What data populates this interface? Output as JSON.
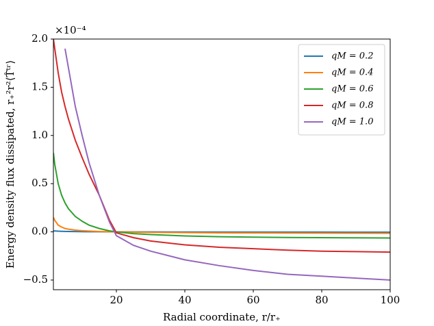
{
  "chart_data": {
    "type": "line",
    "xlabel": "Radial coordinate, r/r₊",
    "ylabel": "Energy density flux dissipated, r₊²r²⟨T̂ᵗʳ⟩",
    "offset_text": "×10⁻⁴",
    "x": [
      1.6,
      2,
      3,
      4,
      5,
      6,
      8,
      10,
      12,
      15,
      18,
      20,
      25,
      30,
      40,
      50,
      60,
      70,
      80,
      90,
      100
    ],
    "series": [
      {
        "name": "qM = 0.2",
        "color": "#1f77b4",
        "values": [
          0.01,
          0.009,
          0.007,
          0.006,
          0.005,
          0.004,
          0.003,
          0.002,
          0.0015,
          0.001,
          0.0003,
          0,
          -0.0005,
          -0.001,
          -0.0015,
          -0.002,
          -0.002,
          -0.0025,
          -0.0025,
          -0.003,
          -0.003
        ]
      },
      {
        "name": "qM = 0.4",
        "color": "#ff7f0e",
        "values": [
          0.15,
          0.12,
          0.07,
          0.05,
          0.035,
          0.028,
          0.018,
          0.012,
          0.008,
          0.004,
          0.001,
          0,
          -0.003,
          -0.005,
          -0.008,
          -0.01,
          -0.011,
          -0.012,
          -0.013,
          -0.014,
          -0.015
        ]
      },
      {
        "name": "qM = 0.6",
        "color": "#2ca02c",
        "values": [
          0.82,
          0.7,
          0.5,
          0.38,
          0.3,
          0.24,
          0.16,
          0.11,
          0.07,
          0.035,
          0.01,
          0,
          -0.018,
          -0.028,
          -0.042,
          -0.05,
          -0.055,
          -0.058,
          -0.06,
          -0.062,
          -0.064
        ]
      },
      {
        "name": "qM = 0.8",
        "color": "#d62728",
        "values": [
          2.0,
          1.9,
          1.65,
          1.45,
          1.3,
          1.17,
          0.95,
          0.77,
          0.6,
          0.38,
          0.12,
          -0.01,
          -0.06,
          -0.095,
          -0.135,
          -0.16,
          -0.175,
          -0.19,
          -0.2,
          -0.205,
          -0.21
        ]
      },
      {
        "name": "qM = 1.0",
        "color": "#9467bd",
        "values": [
          null,
          null,
          null,
          null,
          1.9,
          1.7,
          1.3,
          1.0,
          0.72,
          0.38,
          0.1,
          -0.04,
          -0.14,
          -0.2,
          -0.29,
          -0.35,
          -0.4,
          -0.44,
          -0.46,
          -0.48,
          -0.5
        ]
      }
    ],
    "xlim": [
      1.6,
      100
    ],
    "xticks": [
      20,
      40,
      60,
      80,
      100
    ],
    "ylim": [
      -0.6,
      2.0
    ],
    "yticks": [
      {
        "value": -0.5,
        "label": "−0.5"
      },
      {
        "value": 0,
        "label": "0.0"
      },
      {
        "value": 0.5,
        "label": "0.5"
      },
      {
        "value": 1,
        "label": "1.0"
      },
      {
        "value": 1.5,
        "label": "1.5"
      },
      {
        "value": 2,
        "label": "2.0"
      }
    ],
    "legend": "upper right",
    "grid": false
  }
}
